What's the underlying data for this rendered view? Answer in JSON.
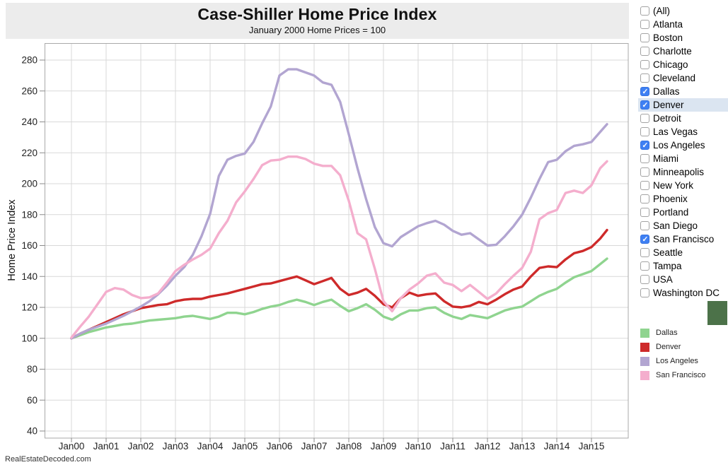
{
  "footer": {
    "text": "RealEstateDecoded.com"
  },
  "sidebar": {
    "items": [
      {
        "label": "(All)",
        "checked": false,
        "highlighted": false
      },
      {
        "label": "Atlanta",
        "checked": false,
        "highlighted": false
      },
      {
        "label": "Boston",
        "checked": false,
        "highlighted": false
      },
      {
        "label": "Charlotte",
        "checked": false,
        "highlighted": false
      },
      {
        "label": "Chicago",
        "checked": false,
        "highlighted": false
      },
      {
        "label": "Cleveland",
        "checked": false,
        "highlighted": false
      },
      {
        "label": "Dallas",
        "checked": true,
        "highlighted": false
      },
      {
        "label": "Denver",
        "checked": true,
        "highlighted": true
      },
      {
        "label": "Detroit",
        "checked": false,
        "highlighted": false
      },
      {
        "label": "Las Vegas",
        "checked": false,
        "highlighted": false
      },
      {
        "label": "Los Angeles",
        "checked": true,
        "highlighted": false
      },
      {
        "label": "Miami",
        "checked": false,
        "highlighted": false
      },
      {
        "label": "Minneapolis",
        "checked": false,
        "highlighted": false
      },
      {
        "label": "New York",
        "checked": false,
        "highlighted": false
      },
      {
        "label": "Phoenix",
        "checked": false,
        "highlighted": false
      },
      {
        "label": "Portland",
        "checked": false,
        "highlighted": false
      },
      {
        "label": "San Diego",
        "checked": false,
        "highlighted": false
      },
      {
        "label": "San Francisco",
        "checked": true,
        "highlighted": false
      },
      {
        "label": "Seattle",
        "checked": false,
        "highlighted": false
      },
      {
        "label": "Tampa",
        "checked": false,
        "highlighted": false
      },
      {
        "label": "USA",
        "checked": false,
        "highlighted": false
      },
      {
        "label": "Washington DC",
        "checked": false,
        "highlighted": false
      }
    ]
  },
  "legend": {
    "items": [
      {
        "label": "Dallas",
        "color": "#8fd48f"
      },
      {
        "label": "Denver",
        "color": "#ce2a2a"
      },
      {
        "label": "Los Angeles",
        "color": "#b2a5d1"
      },
      {
        "label": "San Francisco",
        "color": "#f4aecd"
      }
    ]
  },
  "highlight_swatch_color": "#4c7249",
  "colors": {
    "header_bg": "#ececec",
    "grid": "#d9d9d9",
    "plot_border": "#a9a9a9",
    "row_highlight": "#dbe5f1",
    "checkbox_checked": "#3f80f3"
  },
  "chart_data": {
    "type": "line",
    "title": "Case-Shiller Home Price Index",
    "subtitle": "January 2000 Home Prices = 100",
    "xlabel": "",
    "ylabel": "Home Price Index",
    "ylim": [
      40,
      280
    ],
    "grid": true,
    "legend_position": "right",
    "y_ticks": [
      40,
      60,
      80,
      100,
      120,
      140,
      160,
      180,
      200,
      220,
      240,
      260,
      280
    ],
    "x_tick_labels": [
      "Jan00",
      "Jan01",
      "Jan02",
      "Jan03",
      "Jan04",
      "Jan05",
      "Jan06",
      "Jan07",
      "Jan08",
      "Jan09",
      "Jan10",
      "Jan11",
      "Jan12",
      "Jan13",
      "Jan14",
      "Jan15"
    ],
    "x_years_since_2000": [
      0,
      0.25,
      0.5,
      0.75,
      1,
      1.25,
      1.5,
      1.75,
      2,
      2.25,
      2.5,
      2.75,
      3,
      3.25,
      3.5,
      3.75,
      4,
      4.25,
      4.5,
      4.75,
      5,
      5.25,
      5.5,
      5.75,
      6,
      6.25,
      6.5,
      6.75,
      7,
      7.25,
      7.5,
      7.75,
      8,
      8.25,
      8.5,
      8.75,
      9,
      9.25,
      9.5,
      9.75,
      10,
      10.25,
      10.5,
      10.75,
      11,
      11.25,
      11.5,
      11.75,
      12,
      12.25,
      12.5,
      12.75,
      13,
      13.25,
      13.5,
      13.75,
      14,
      14.25,
      14.5,
      14.75,
      15,
      15.25,
      15.45
    ],
    "series": [
      {
        "name": "Dallas",
        "color": "#8fd48f",
        "values": [
          100,
          102,
          104,
          105.5,
          107,
          108,
          109,
          109.5,
          110.5,
          111.5,
          112,
          112.5,
          113,
          114,
          114.5,
          113.5,
          112.5,
          114,
          116.5,
          116.5,
          115.5,
          117,
          119,
          120.5,
          121.5,
          123.5,
          125,
          123.5,
          121.5,
          123.5,
          125,
          121,
          117.5,
          119.5,
          122,
          118.5,
          114,
          112,
          115.5,
          118,
          118,
          119.5,
          120,
          116.5,
          114,
          112.5,
          115,
          114,
          113,
          115.5,
          118,
          119.5,
          120.5,
          124,
          127.5,
          130,
          132,
          136,
          139.5,
          141.5,
          143.5,
          148,
          151.5
        ]
      },
      {
        "name": "Denver",
        "color": "#ce2a2a",
        "values": [
          100,
          103,
          105.5,
          108,
          110.5,
          113,
          115.5,
          117.5,
          119.5,
          120.5,
          121.5,
          122,
          124,
          125,
          125.5,
          125.5,
          127,
          128,
          129,
          130.5,
          132,
          133.5,
          135,
          135.5,
          137,
          138.5,
          140,
          137.5,
          135,
          137,
          139,
          132,
          128,
          129.5,
          132,
          127.5,
          122,
          120,
          126,
          129.5,
          127.5,
          128.5,
          129,
          124,
          120.5,
          120,
          121,
          123.5,
          122,
          125,
          128.5,
          131.5,
          133.5,
          140,
          145.5,
          146.5,
          146,
          151,
          155,
          156.5,
          159,
          164.5,
          170
        ]
      },
      {
        "name": "Los Angeles",
        "color": "#b2a5d1",
        "values": [
          100,
          103,
          105.5,
          107.5,
          109.5,
          112,
          114.5,
          117.5,
          120.5,
          124,
          128.5,
          134,
          140.5,
          146,
          154,
          166,
          180.5,
          205,
          215.5,
          218,
          219.5,
          227,
          239,
          250,
          270,
          274,
          274,
          272,
          270,
          265.5,
          264,
          253,
          232,
          210,
          190,
          172,
          161.5,
          159.5,
          165.5,
          169,
          172.5,
          174.5,
          176,
          173.5,
          169.5,
          167,
          168,
          164,
          160,
          160.5,
          166,
          172.5,
          180,
          191,
          203,
          214,
          215.5,
          221,
          224.5,
          225.5,
          227,
          233.5,
          238.5
        ]
      },
      {
        "name": "San Francisco",
        "color": "#f4aecd",
        "values": [
          100.5,
          107.5,
          114,
          122,
          130,
          132.5,
          131.5,
          128,
          126,
          126.5,
          129,
          136,
          143.5,
          147.5,
          151,
          154,
          158,
          168,
          176,
          188,
          195,
          203,
          212,
          215,
          215.5,
          217.5,
          217.5,
          216,
          213,
          211.5,
          211.5,
          205.5,
          189,
          168,
          164,
          145,
          124,
          117.5,
          126,
          131.5,
          135.5,
          140.5,
          142,
          136,
          134.5,
          130.5,
          134.5,
          130,
          125.5,
          129,
          135,
          140.5,
          145.5,
          156,
          177,
          181,
          183,
          194,
          195.5,
          194,
          199,
          210,
          214.5
        ]
      }
    ]
  }
}
